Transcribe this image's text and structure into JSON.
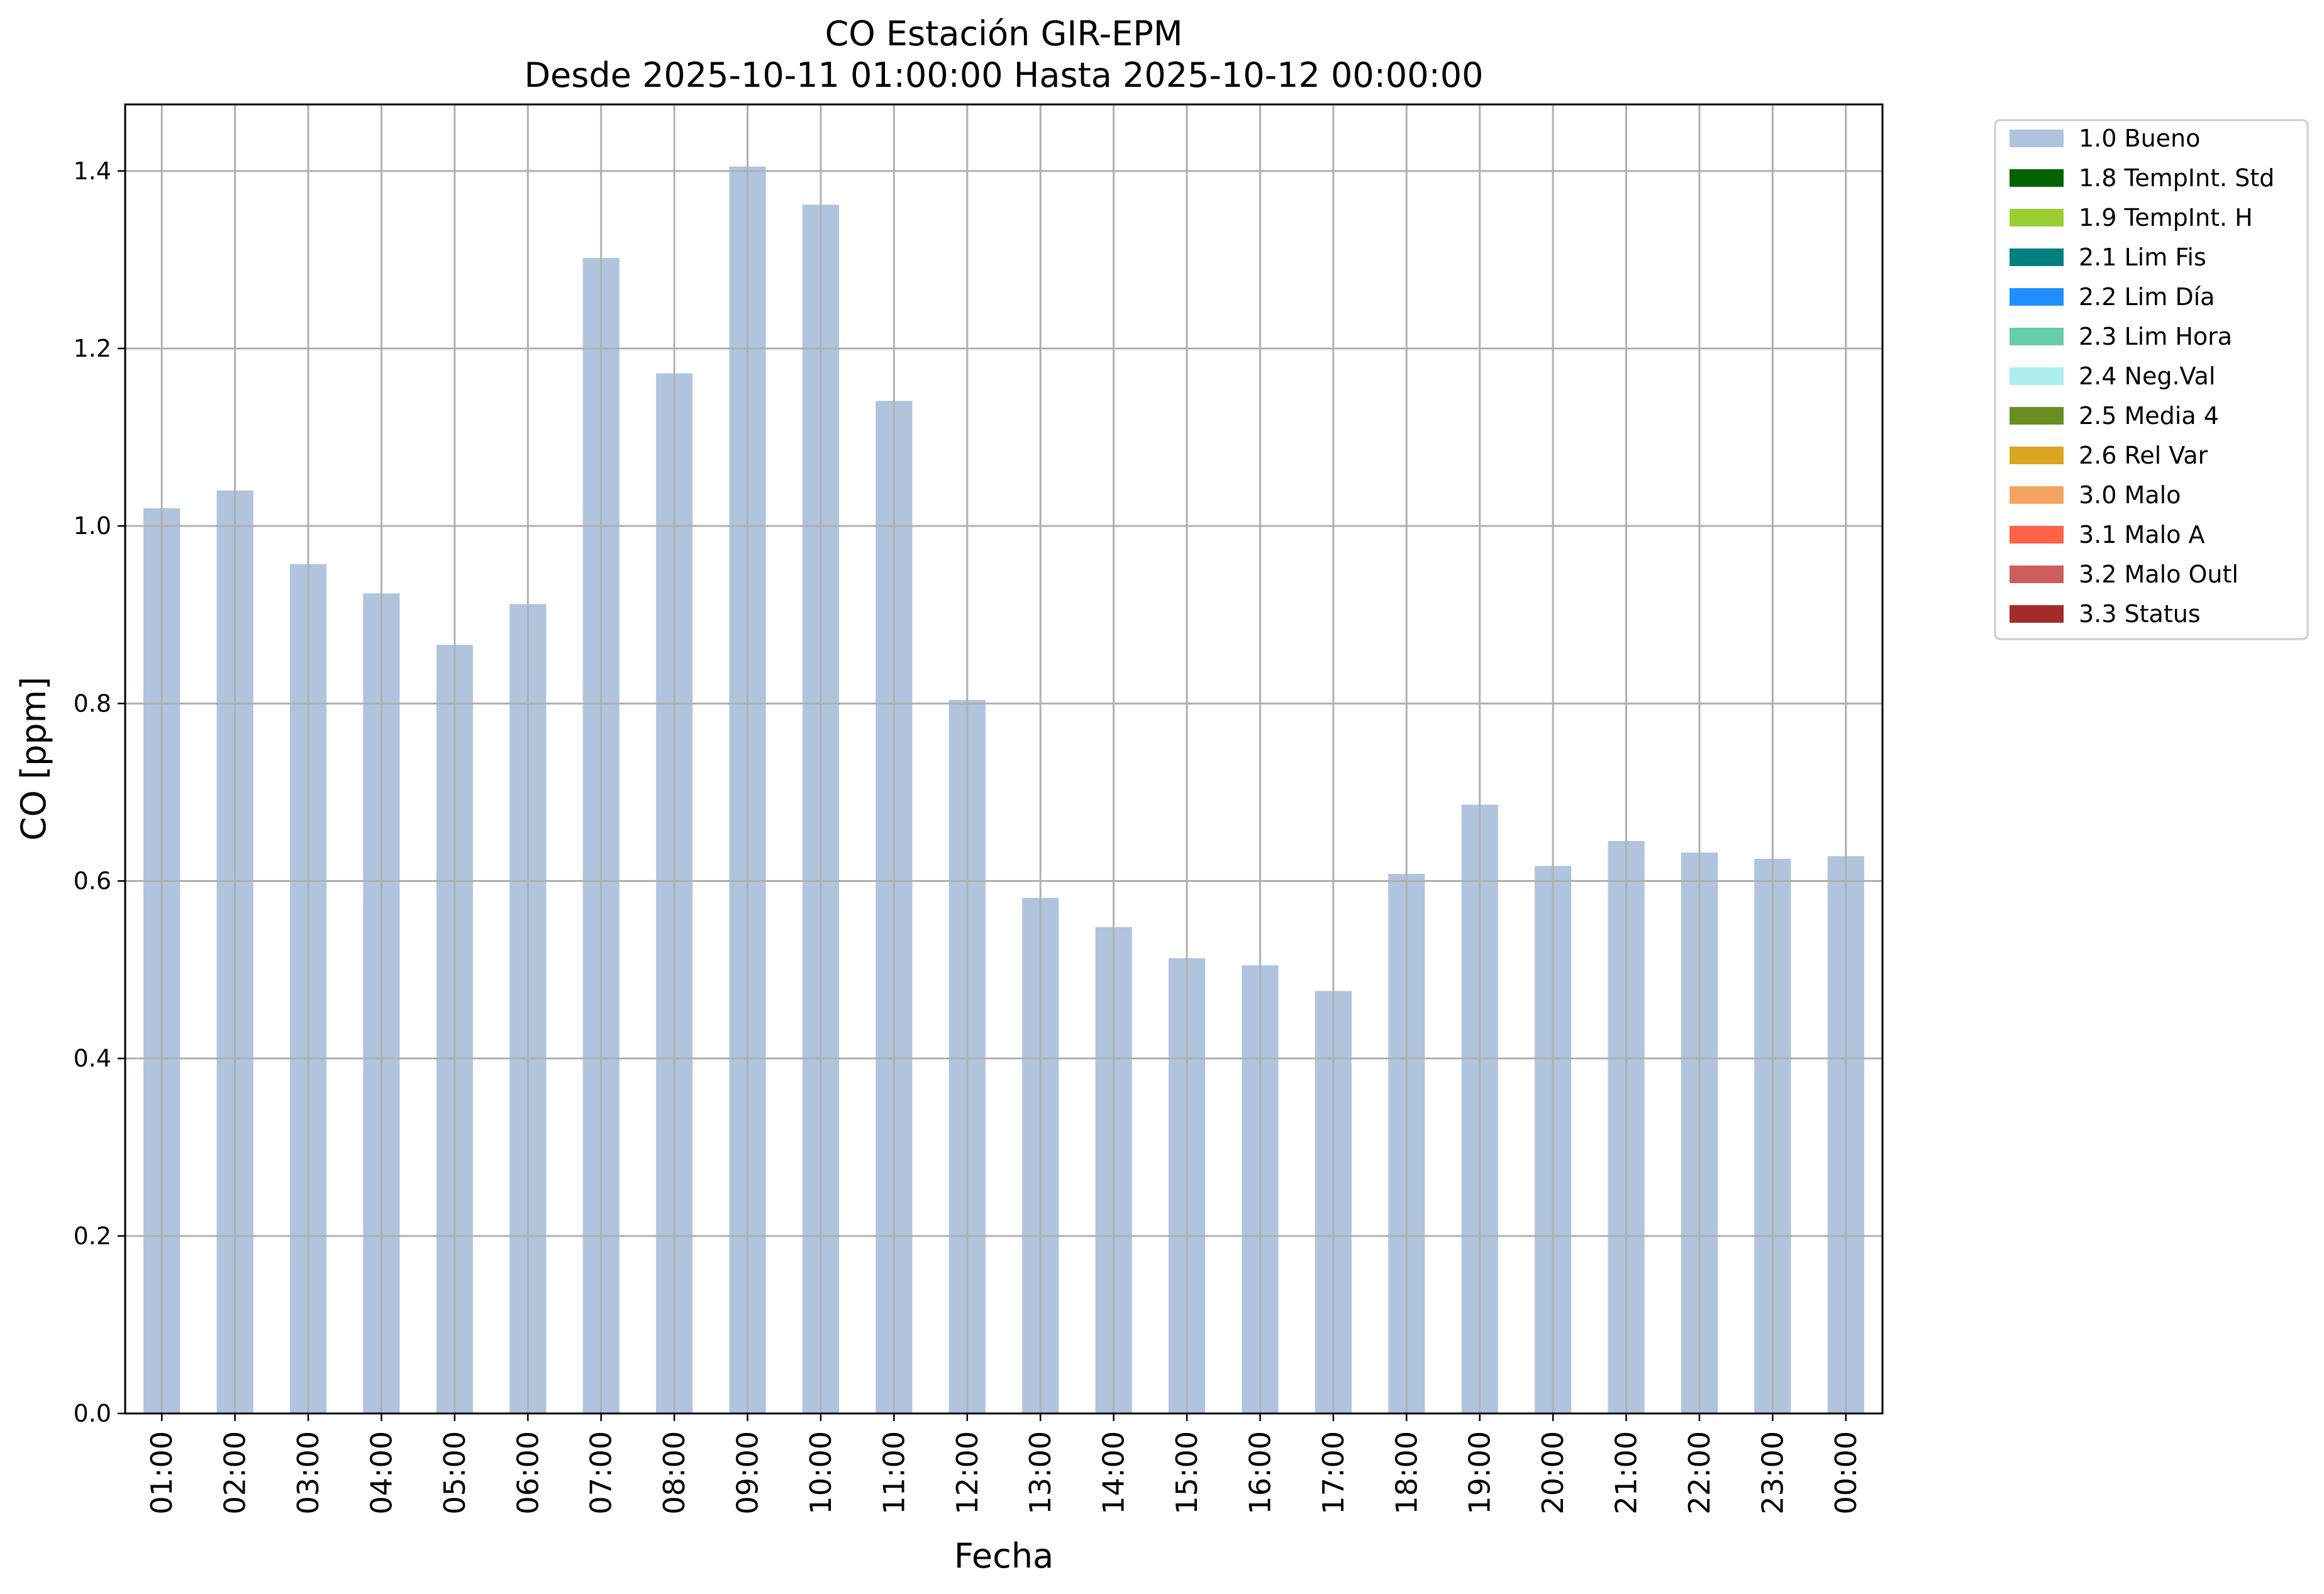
{
  "chart_data": {
    "type": "bar",
    "title": "CO Estación GIR-EPM",
    "subtitle": "Desde 2025-10-11 01:00:00 Hasta 2025-10-12 00:00:00",
    "xlabel": "Fecha",
    "ylabel": "CO [ppm]",
    "ylim": [
      0,
      1.475
    ],
    "yticks": [
      "0.0",
      "0.2",
      "0.4",
      "0.6",
      "0.8",
      "1.0",
      "1.2",
      "1.4"
    ],
    "grid": true,
    "legend_position": "outside-top-right",
    "categories": [
      "01:00",
      "02:00",
      "03:00",
      "04:00",
      "05:00",
      "06:00",
      "07:00",
      "08:00",
      "09:00",
      "10:00",
      "11:00",
      "12:00",
      "13:00",
      "14:00",
      "15:00",
      "16:00",
      "17:00",
      "18:00",
      "19:00",
      "20:00",
      "21:00",
      "22:00",
      "23:00",
      "00:00"
    ],
    "series": [
      {
        "name": "1.0 Bueno",
        "color": "#b0c4de",
        "values": [
          1.02,
          1.04,
          0.957,
          0.924,
          0.866,
          0.912,
          1.302,
          1.172,
          1.405,
          1.362,
          1.141,
          0.804,
          0.581,
          0.548,
          0.513,
          0.505,
          0.476,
          0.608,
          0.686,
          0.617,
          0.645,
          0.632,
          0.625,
          0.628
        ]
      }
    ],
    "legend": [
      {
        "label": "1.0 Bueno",
        "color": "#b0c4de"
      },
      {
        "label": "1.8 TempInt. Std",
        "color": "#006400"
      },
      {
        "label": "1.9 TempInt. H",
        "color": "#9acd32"
      },
      {
        "label": "2.1 Lim Fis",
        "color": "#008080"
      },
      {
        "label": "2.2 Lim Día",
        "color": "#1e90ff"
      },
      {
        "label": "2.3 Lim Hora",
        "color": "#66cdaa"
      },
      {
        "label": "2.4 Neg.Val",
        "color": "#afeeee"
      },
      {
        "label": "2.5 Media 4",
        "color": "#6b8e23"
      },
      {
        "label": "2.6 Rel Var",
        "color": "#daa520"
      },
      {
        "label": "3.0 Malo",
        "color": "#f4a460"
      },
      {
        "label": "3.1 Malo A",
        "color": "#ff6347"
      },
      {
        "label": "3.2 Malo Outl",
        "color": "#cd5c5c"
      },
      {
        "label": "3.3 Status",
        "color": "#a52a2a"
      }
    ]
  }
}
